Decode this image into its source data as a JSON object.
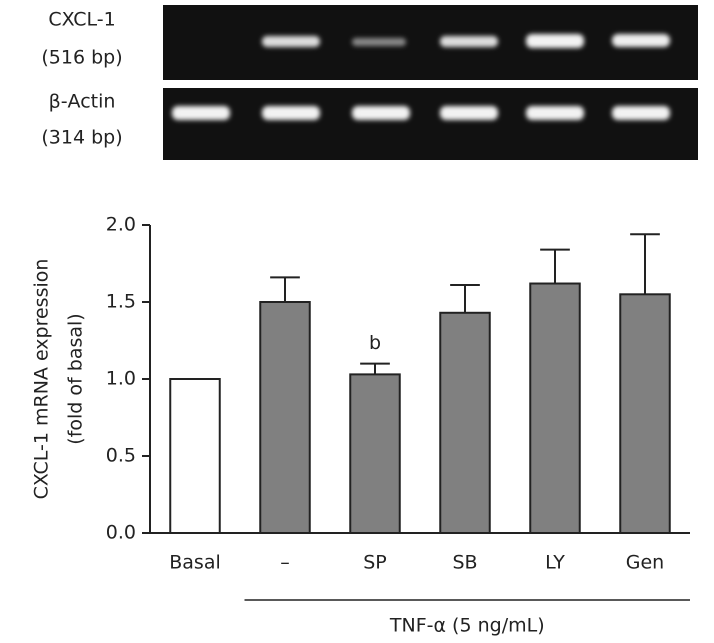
{
  "gel": {
    "rows": [
      {
        "label": "CXCL-1",
        "size": "(516 bp)"
      },
      {
        "label": "β-Actin",
        "size": "(314 bp)"
      }
    ]
  },
  "chart_data": {
    "type": "bar",
    "ylabel": [
      "CXCL-1 mRNA expression",
      "(fold of basal)"
    ],
    "categories": [
      "Basal",
      "–",
      "SP",
      "SB",
      "LY",
      "Gen"
    ],
    "values": [
      1.0,
      1.5,
      1.03,
      1.43,
      1.62,
      1.55
    ],
    "errors": [
      0,
      0.16,
      0.07,
      0.18,
      0.22,
      0.39
    ],
    "colors": [
      "#ffffff",
      "#808080",
      "#808080",
      "#808080",
      "#808080",
      "#808080"
    ],
    "ylim": [
      0,
      2
    ],
    "yticks": [
      {
        "value": 0,
        "label": "0.0"
      },
      {
        "value": 0.5,
        "label": "0.5"
      },
      {
        "value": 1,
        "label": "1.0"
      },
      {
        "value": 1.5,
        "label": "1.5"
      },
      {
        "value": 2,
        "label": "2.0"
      }
    ],
    "annotations": [
      {
        "text": "b",
        "category": 2
      }
    ],
    "group_label": "TNF-α (5 ng/mL)"
  }
}
